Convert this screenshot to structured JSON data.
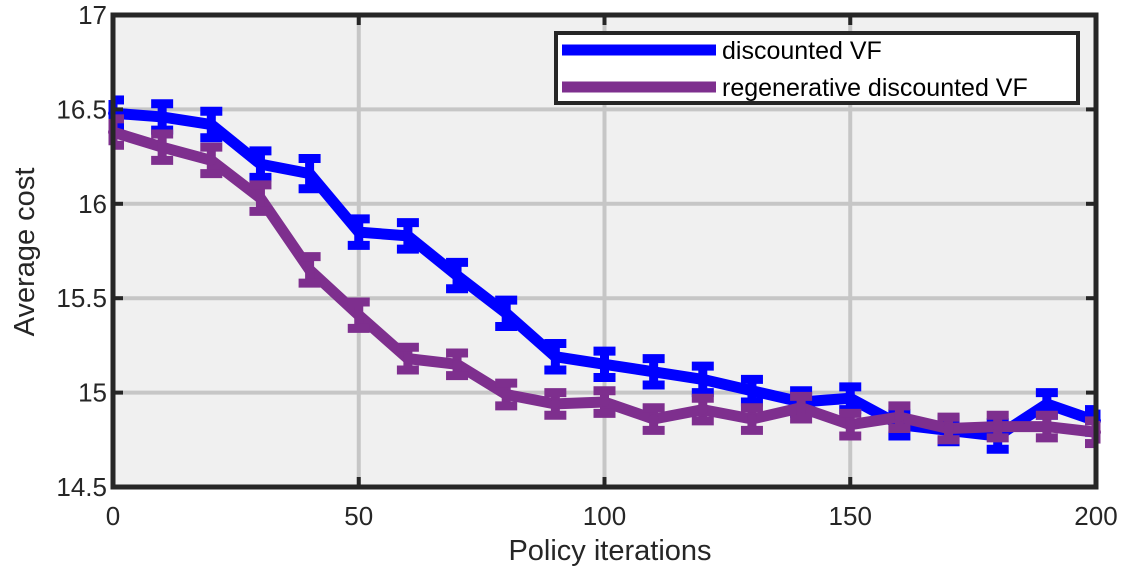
{
  "chart_data": {
    "type": "line",
    "xlabel": "Policy iterations",
    "ylabel": "Average cost",
    "xlim": [
      0,
      200
    ],
    "ylim": [
      14.5,
      17
    ],
    "xticks": [
      "0",
      "50",
      "100",
      "150",
      "200"
    ],
    "yticks": [
      "14.5",
      "15",
      "15.5",
      "16",
      "16.5",
      "17"
    ],
    "grid": true,
    "legend_position": "top-right",
    "x": [
      0,
      10,
      20,
      30,
      40,
      50,
      60,
      70,
      80,
      90,
      100,
      110,
      120,
      130,
      140,
      150,
      160,
      170,
      180,
      190,
      200
    ],
    "series": [
      {
        "name": "discounted VF",
        "color": "#0000ff",
        "values": [
          16.48,
          16.46,
          16.42,
          16.21,
          16.16,
          15.85,
          15.83,
          15.62,
          15.42,
          15.19,
          15.15,
          15.11,
          15.07,
          15.01,
          14.95,
          14.97,
          14.83,
          14.8,
          14.77,
          14.94,
          14.85
        ],
        "error": [
          0.07,
          0.07,
          0.07,
          0.07,
          0.08,
          0.07,
          0.07,
          0.07,
          0.07,
          0.07,
          0.07,
          0.07,
          0.07,
          0.06,
          0.06,
          0.06,
          0.06,
          0.06,
          0.07,
          0.06,
          0.06
        ]
      },
      {
        "name": "regenerative discounted VF",
        "color": "#7e2f8e",
        "values": [
          16.38,
          16.3,
          16.23,
          16.03,
          15.65,
          15.41,
          15.18,
          15.15,
          14.99,
          14.94,
          14.95,
          14.86,
          14.91,
          14.86,
          14.92,
          14.83,
          14.87,
          14.81,
          14.82,
          14.82,
          14.79
        ],
        "error": [
          0.07,
          0.07,
          0.07,
          0.07,
          0.07,
          0.07,
          0.06,
          0.06,
          0.06,
          0.06,
          0.06,
          0.06,
          0.06,
          0.06,
          0.06,
          0.06,
          0.06,
          0.06,
          0.06,
          0.06,
          0.06
        ]
      }
    ]
  }
}
